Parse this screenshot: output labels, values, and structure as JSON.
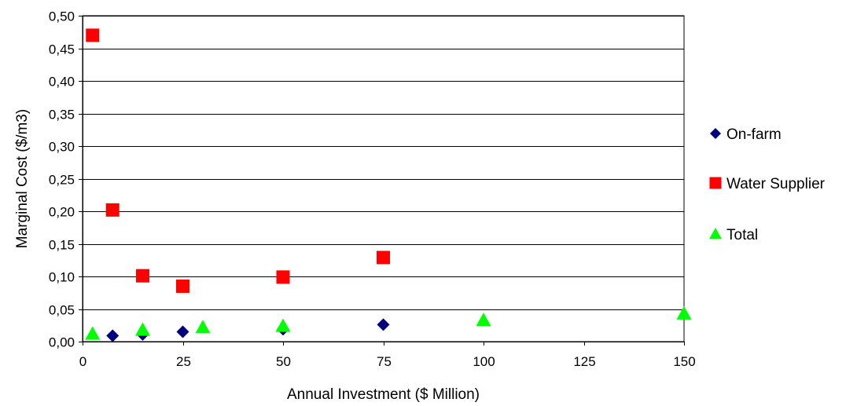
{
  "chart_data": {
    "type": "scatter",
    "title": "",
    "xlabel": "Annual Investment ($ Million)",
    "ylabel": "Marginal Cost ($/m3)",
    "xlim": [
      0,
      150
    ],
    "ylim": [
      0,
      0.5
    ],
    "xticks": [
      0,
      25,
      50,
      75,
      100,
      125,
      150
    ],
    "xtick_labels": [
      "0",
      "25",
      "50",
      "75",
      "100",
      "125",
      "150"
    ],
    "yticks": [
      0,
      0.05,
      0.1,
      0.15,
      0.2,
      0.25,
      0.3,
      0.35,
      0.4,
      0.45,
      0.5
    ],
    "ytick_labels": [
      "0,00",
      "0,05",
      "0,10",
      "0,15",
      "0,20",
      "0,25",
      "0,30",
      "0,35",
      "0,40",
      "0,45",
      "0,50"
    ],
    "grid": "horizontal",
    "legend_position": "right",
    "series": [
      {
        "name": "On-farm",
        "marker": "diamond",
        "color": "#00007f",
        "points": [
          [
            7.5,
            0.009
          ],
          [
            15,
            0.011
          ],
          [
            25,
            0.015
          ],
          [
            50,
            0.019
          ],
          [
            75,
            0.026
          ]
        ]
      },
      {
        "name": "Water Supplier",
        "marker": "square",
        "color": "#ff0000",
        "points": [
          [
            2.5,
            0.47
          ],
          [
            7.5,
            0.202
          ],
          [
            15,
            0.101
          ],
          [
            25,
            0.085
          ],
          [
            50,
            0.099
          ],
          [
            75,
            0.129
          ]
        ]
      },
      {
        "name": "Total",
        "marker": "triangle",
        "color": "#00ff00",
        "points": [
          [
            2.5,
            0.012
          ],
          [
            15,
            0.018
          ],
          [
            30,
            0.022
          ],
          [
            50,
            0.024
          ],
          [
            100,
            0.033
          ],
          [
            150,
            0.043
          ]
        ]
      }
    ]
  }
}
